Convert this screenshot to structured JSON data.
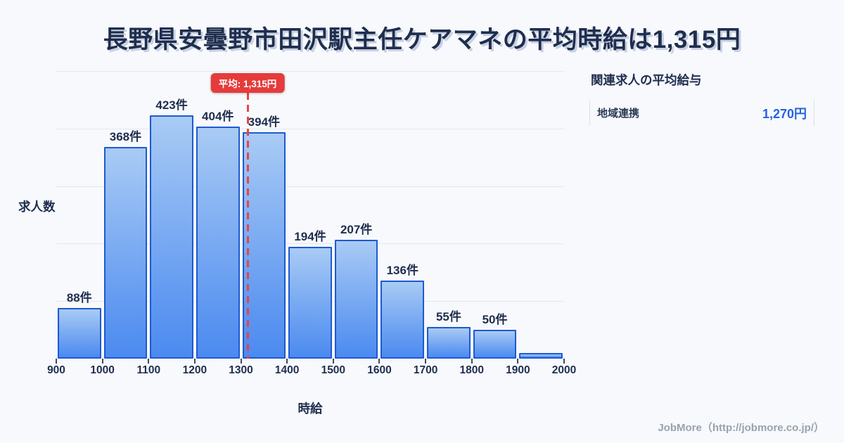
{
  "title": "長野県安曇野市田沢駅主任ケアマネの平均時給は1,315円",
  "chart_data": {
    "type": "bar",
    "title": "長野県安曇野市田沢駅主任ケアマネの平均時給は1,315円",
    "xlabel": "時給",
    "ylabel": "求人数",
    "x_ticks": [
      900,
      1000,
      1100,
      1200,
      1300,
      1400,
      1500,
      1600,
      1700,
      1800,
      1900,
      2000
    ],
    "bin_start": 900,
    "bin_width": 100,
    "values": [
      88,
      368,
      423,
      404,
      394,
      194,
      207,
      136,
      55,
      50,
      10
    ],
    "bar_labels": [
      "88件",
      "368件",
      "423件",
      "404件",
      "394件",
      "194件",
      "207件",
      "136件",
      "55件",
      "50件",
      ""
    ],
    "ylim": [
      0,
      500
    ],
    "grid_values": [
      100,
      200,
      300,
      400,
      500
    ],
    "grid_on": true,
    "legend": "none",
    "average": {
      "value": 1315,
      "label": "平均: 1,315円"
    },
    "colors": {
      "bar_top": "#a9cbf5",
      "bar_bottom": "#4b8af0",
      "bar_border": "#1e5ad0",
      "average_red": "#e63b3b",
      "text_navy": "#1f2e4e",
      "gridline": "#e3e8f0",
      "background": "#f7f9fc"
    }
  },
  "side_panel": {
    "header": "関連求人の平均給与",
    "rows": [
      {
        "label": "地域連携",
        "value": "1,270円",
        "value_color": "#2563e2"
      }
    ]
  },
  "footer": {
    "credit": "JobMore（http://jobmore.co.jp/）"
  }
}
